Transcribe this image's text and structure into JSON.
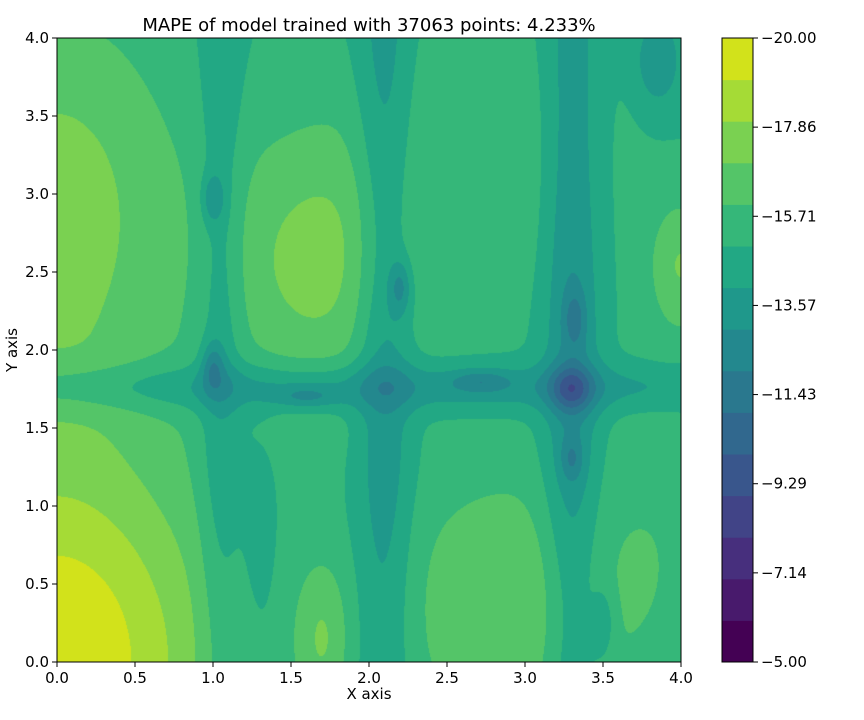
{
  "chart_data": {
    "type": "heatmap",
    "subtype": "filled-contour",
    "title": "MAPE of model trained with 37063 points: 4.233%",
    "xlabel": "X axis",
    "ylabel": "Y axis",
    "xlim": [
      0.0,
      4.0
    ],
    "ylim": [
      0.0,
      4.0
    ],
    "xticks": [
      "0.0",
      "0.5",
      "1.0",
      "1.5",
      "2.0",
      "2.5",
      "3.0",
      "3.5",
      "4.0"
    ],
    "yticks": [
      "0.0",
      "0.5",
      "1.0",
      "1.5",
      "2.0",
      "2.5",
      "3.0",
      "3.5",
      "4.0"
    ],
    "colorbar": {
      "range": [
        -20.0,
        -5.0
      ],
      "tick_labels": [
        "−20.00",
        "−17.86",
        "−15.71",
        "−13.57",
        "−11.43",
        "−9.29",
        "−7.14",
        "−5.00"
      ],
      "levels": [
        -20.0,
        -19.0,
        -18.0,
        -17.0,
        -16.0,
        -15.0,
        -14.0,
        -13.0,
        -12.0,
        -11.0,
        -10.0,
        -9.0,
        -8.0,
        -7.0,
        -6.0,
        -5.0
      ],
      "colormap": [
        "#440154",
        "#481a6c",
        "#472f7d",
        "#414487",
        "#39568c",
        "#31688e",
        "#2a788e",
        "#23888e",
        "#1f988b",
        "#22a884",
        "#35b779",
        "#54c568",
        "#7ad151",
        "#a5db36",
        "#d2e21b",
        "#fde725"
      ]
    }
  }
}
